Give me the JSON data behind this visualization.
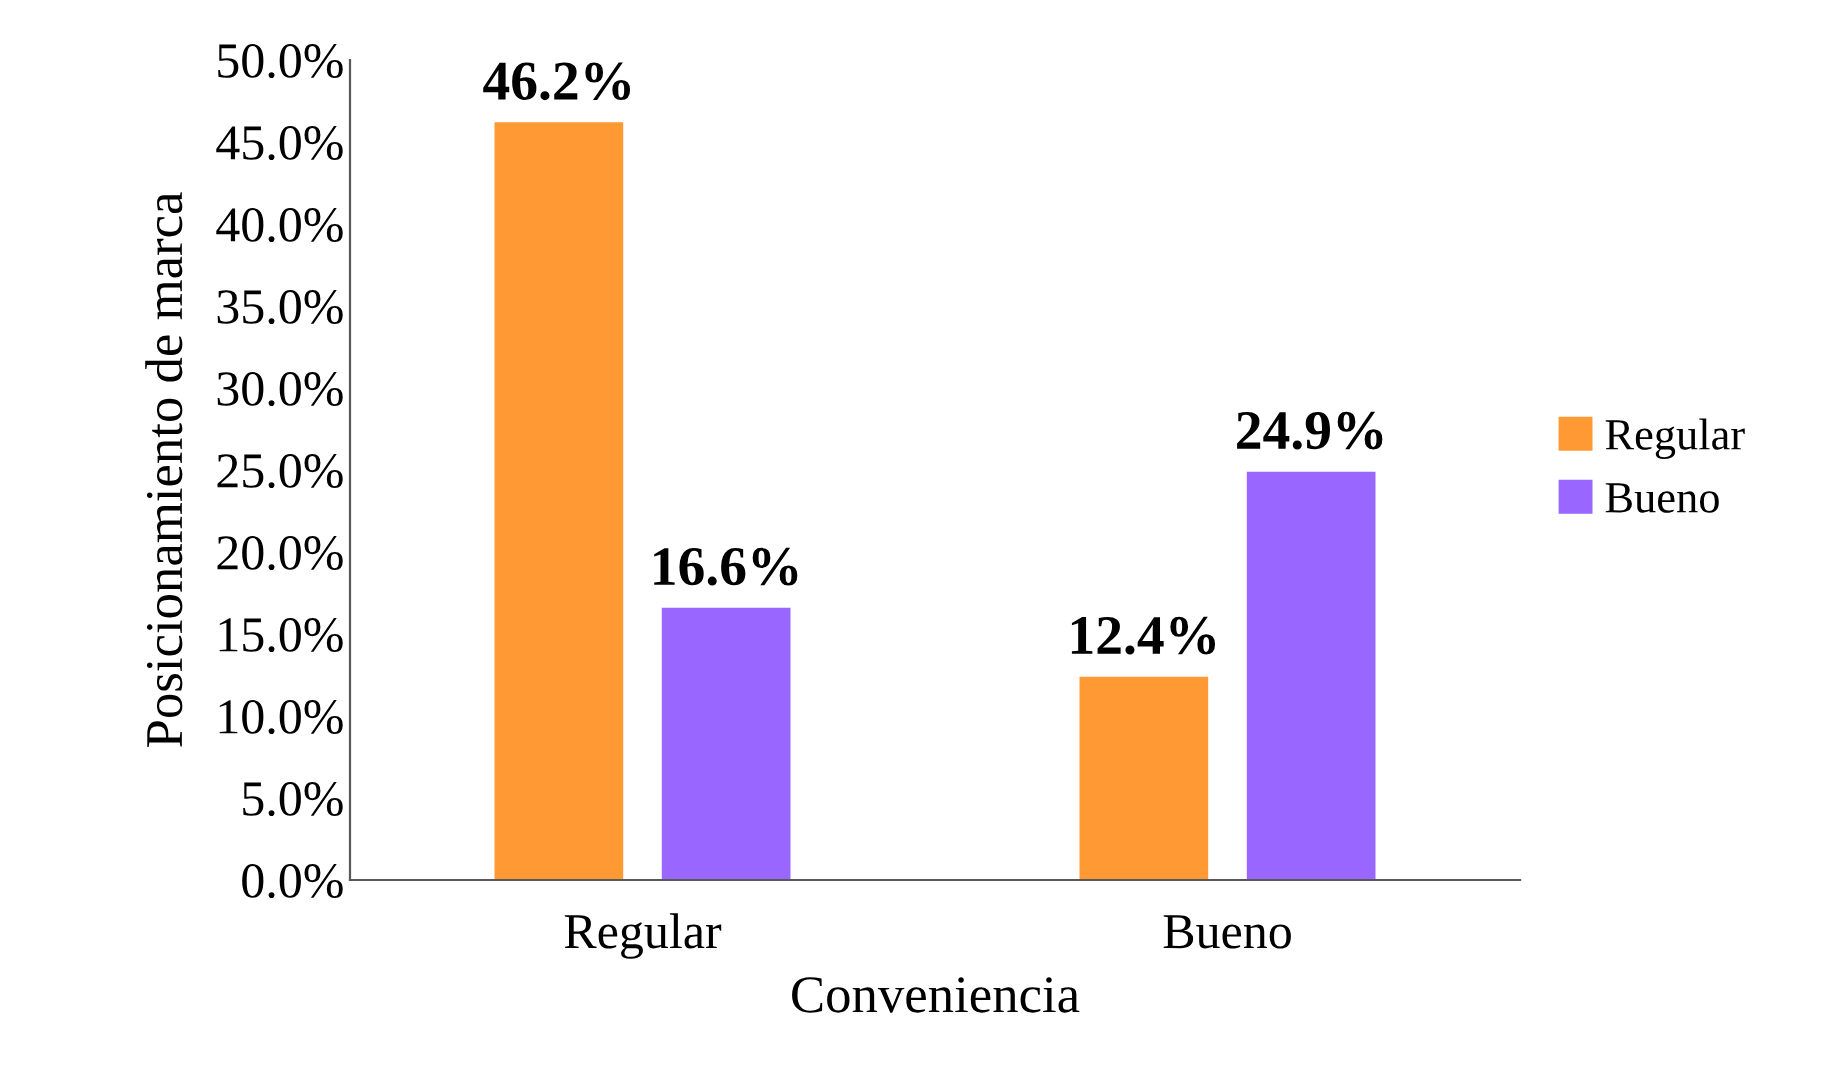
{
  "chart_data": {
    "type": "bar",
    "xlabel": "Conveniencia",
    "ylabel": "Posicionamiento de marca",
    "categories": [
      "Regular",
      "Bueno"
    ],
    "series": [
      {
        "name": "Regular",
        "color": "#ff9933",
        "values": [
          46.2,
          12.4
        ],
        "value_labels": [
          "46.2%",
          "12.4%"
        ]
      },
      {
        "name": "Bueno",
        "color": "#9966ff",
        "values": [
          16.6,
          24.9
        ],
        "value_labels": [
          "16.6%",
          "24.9%"
        ]
      }
    ],
    "ylim": [
      0,
      50
    ],
    "yticks": [
      {
        "value": 0,
        "label": "0.0%"
      },
      {
        "value": 5,
        "label": "5.0%"
      },
      {
        "value": 10,
        "label": "10.0%"
      },
      {
        "value": 15,
        "label": "15.0%"
      },
      {
        "value": 20,
        "label": "20.0%"
      },
      {
        "value": 25,
        "label": "25.0%"
      },
      {
        "value": 30,
        "label": "30.0%"
      },
      {
        "value": 35,
        "label": "35.0%"
      },
      {
        "value": 40,
        "label": "40.0%"
      },
      {
        "value": 45,
        "label": "45.0%"
      },
      {
        "value": 50,
        "label": "50.0%"
      }
    ],
    "grid": false,
    "legend": "right"
  }
}
